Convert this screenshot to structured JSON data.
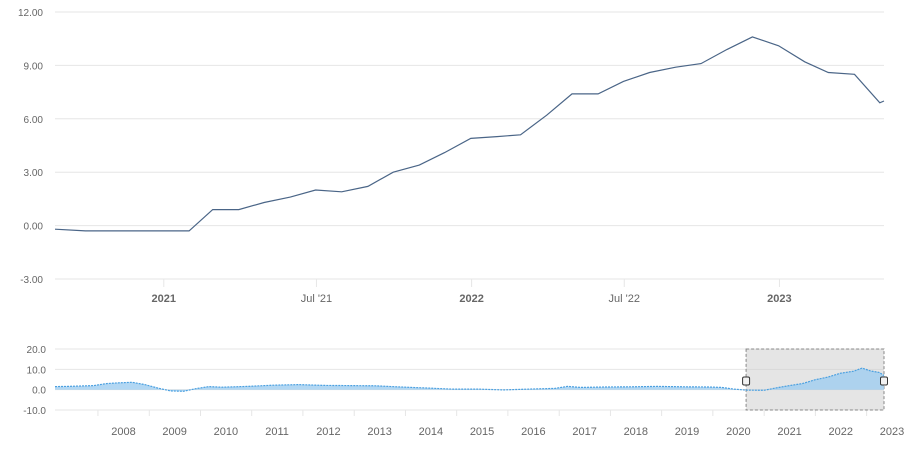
{
  "colors": {
    "main_line": "#4a6587",
    "nav_line": "#4ba0e0",
    "nav_fill": "#9fcdf0",
    "grid": "#e6e6e6",
    "tick_text": "#666666",
    "selection_fill": "#cccccc",
    "selection_border": "#888888"
  },
  "chart_data": [
    {
      "type": "line",
      "title": "",
      "xlabel": "",
      "ylabel": "",
      "ylim": [
        -3,
        12
      ],
      "yticks": [
        "-3.00",
        "0.00",
        "3.00",
        "6.00",
        "9.00",
        "12.00"
      ],
      "xticks": [
        {
          "date": "2021-01-01",
          "label": "2021",
          "bold": true
        },
        {
          "date": "2021-07-01",
          "label": "Jul '21",
          "bold": false
        },
        {
          "date": "2022-01-01",
          "label": "2022",
          "bold": true
        },
        {
          "date": "2022-07-01",
          "label": "Jul '22",
          "bold": false
        },
        {
          "date": "2023-01-01",
          "label": "2023",
          "bold": true
        }
      ],
      "xrange": [
        "2020-08-25",
        "2023-05-05"
      ],
      "grid": true,
      "legend": "none",
      "series": [
        {
          "x": [
            "2020-08-25",
            "2020-09-30",
            "2020-10-31",
            "2020-11-30",
            "2020-12-31",
            "2021-01-31",
            "2021-02-28",
            "2021-03-31",
            "2021-04-30",
            "2021-05-31",
            "2021-06-30",
            "2021-07-31",
            "2021-08-31",
            "2021-09-30",
            "2021-10-31",
            "2021-11-30",
            "2021-12-31",
            "2022-01-31",
            "2022-02-28",
            "2022-03-31",
            "2022-04-30",
            "2022-05-31",
            "2022-06-30",
            "2022-07-31",
            "2022-08-31",
            "2022-09-30",
            "2022-10-31",
            "2022-11-30",
            "2022-12-31",
            "2023-01-31",
            "2023-02-28",
            "2023-03-31",
            "2023-04-30",
            "2023-05-05"
          ],
          "values": [
            -0.2,
            -0.3,
            -0.3,
            -0.3,
            -0.3,
            -0.3,
            0.9,
            0.9,
            1.3,
            1.6,
            2.0,
            1.9,
            2.2,
            3.0,
            3.4,
            4.1,
            4.9,
            5.0,
            5.1,
            6.2,
            7.4,
            7.4,
            8.1,
            8.6,
            8.9,
            9.1,
            9.9,
            10.6,
            10.1,
            9.2,
            8.6,
            8.5,
            6.9,
            7.0
          ]
        }
      ]
    },
    {
      "type": "area",
      "title": "",
      "role": "navigator",
      "ylim": [
        -10,
        20
      ],
      "yticks": [
        "-10.0",
        "0.0",
        "10.0",
        "20.0"
      ],
      "xticks": [
        "2008",
        "2009",
        "2010",
        "2011",
        "2012",
        "2013",
        "2014",
        "2015",
        "2016",
        "2017",
        "2018",
        "2019",
        "2020",
        "2021",
        "2022",
        "2023"
      ],
      "xrange": [
        "2007-03-01",
        "2023-05-05"
      ],
      "selection": [
        "2020-08-25",
        "2023-05-05"
      ],
      "grid": true,
      "series": [
        {
          "x": [
            "2007-03-01",
            "2007-06-01",
            "2007-09-01",
            "2007-12-01",
            "2008-03-01",
            "2008-06-01",
            "2008-09-01",
            "2008-12-01",
            "2009-03-01",
            "2009-06-01",
            "2009-09-01",
            "2009-12-01",
            "2010-03-01",
            "2010-06-01",
            "2010-09-01",
            "2010-12-01",
            "2011-06-01",
            "2011-12-01",
            "2012-06-01",
            "2012-12-01",
            "2013-06-01",
            "2013-12-01",
            "2014-06-01",
            "2014-12-01",
            "2015-06-01",
            "2015-12-01",
            "2016-06-01",
            "2016-12-01",
            "2017-03-01",
            "2017-06-01",
            "2017-12-01",
            "2018-06-01",
            "2018-12-01",
            "2019-06-01",
            "2019-12-01",
            "2020-03-01",
            "2020-06-01",
            "2020-08-25",
            "2020-12-31",
            "2021-03-31",
            "2021-06-30",
            "2021-09-30",
            "2021-12-31",
            "2022-03-31",
            "2022-06-30",
            "2022-09-30",
            "2022-11-30",
            "2023-01-31",
            "2023-03-31",
            "2023-05-05"
          ],
          "values": [
            1.5,
            1.6,
            1.8,
            2.0,
            3.0,
            3.4,
            3.6,
            2.5,
            0.8,
            -0.6,
            -0.8,
            0.5,
            1.5,
            1.2,
            1.4,
            1.6,
            2.2,
            2.5,
            2.1,
            2.0,
            1.9,
            1.3,
            0.8,
            0.3,
            0.3,
            -0.1,
            0.3,
            0.6,
            1.6,
            1.1,
            1.3,
            1.4,
            1.6,
            1.4,
            1.3,
            1.1,
            0.3,
            -0.2,
            -0.3,
            0.9,
            2.0,
            3.0,
            4.9,
            6.2,
            8.1,
            9.1,
            10.6,
            9.2,
            8.5,
            7.0
          ]
        }
      ]
    }
  ]
}
